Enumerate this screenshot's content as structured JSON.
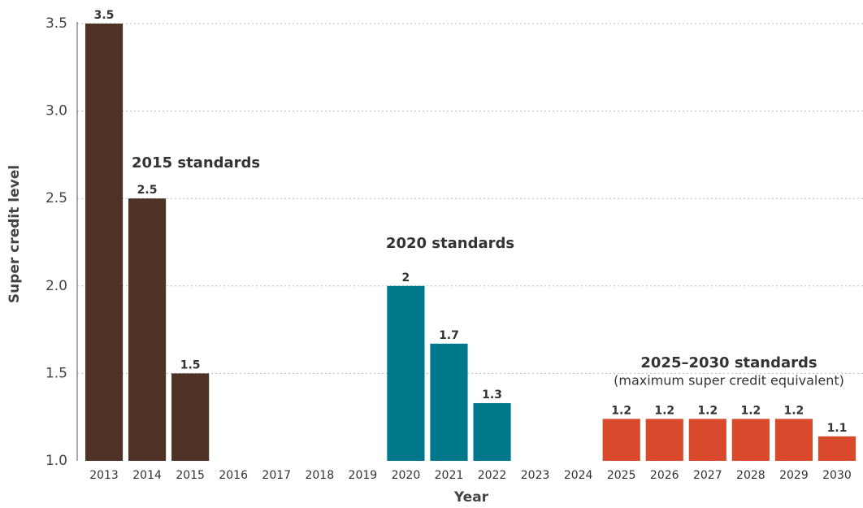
{
  "chart_data": {
    "type": "bar",
    "x_label": "Year",
    "y_label": "Super credit level",
    "categories": [
      "2013",
      "2014",
      "2015",
      "2016",
      "2017",
      "2018",
      "2019",
      "2020",
      "2021",
      "2022",
      "2023",
      "2024",
      "2025",
      "2026",
      "2027",
      "2028",
      "2029",
      "2030"
    ],
    "series": [
      {
        "name": "2015 standards",
        "color": "#4e3226",
        "values": [
          3.5,
          2.5,
          1.5,
          null,
          null,
          null,
          null,
          null,
          null,
          null,
          null,
          null,
          null,
          null,
          null,
          null,
          null,
          null
        ],
        "value_labels": [
          "3.5",
          "2.5",
          "1.5",
          null,
          null,
          null,
          null,
          null,
          null,
          null,
          null,
          null,
          null,
          null,
          null,
          null,
          null,
          null
        ]
      },
      {
        "name": "2020 standards",
        "color": "#00788c",
        "values": [
          null,
          null,
          null,
          null,
          null,
          null,
          null,
          2.0,
          1.67,
          1.33,
          null,
          null,
          null,
          null,
          null,
          null,
          null,
          null
        ],
        "value_labels": [
          null,
          null,
          null,
          null,
          null,
          null,
          null,
          "2",
          "1.7",
          "1.3",
          null,
          null,
          null,
          null,
          null,
          null,
          null,
          null
        ]
      },
      {
        "name": "2025–2030 standards",
        "color": "#d9492b",
        "note": "(maximum super credit equivalent)",
        "values": [
          null,
          null,
          null,
          null,
          null,
          null,
          null,
          null,
          null,
          null,
          null,
          null,
          1.24,
          1.24,
          1.24,
          1.24,
          1.24,
          1.14
        ],
        "value_labels": [
          null,
          null,
          null,
          null,
          null,
          null,
          null,
          null,
          null,
          null,
          null,
          null,
          "1.2",
          "1.2",
          "1.2",
          "1.2",
          "1.2",
          "1.1"
        ]
      }
    ],
    "ylim": [
      1.0,
      3.5
    ],
    "yticks": [
      {
        "value": 1.0,
        "label": "1.0"
      },
      1.5,
      {
        "value": 2.0,
        "label": "2.0"
      },
      2.5,
      {
        "value": 3.0,
        "label": "3.0"
      },
      3.5
    ],
    "grid": true
  }
}
